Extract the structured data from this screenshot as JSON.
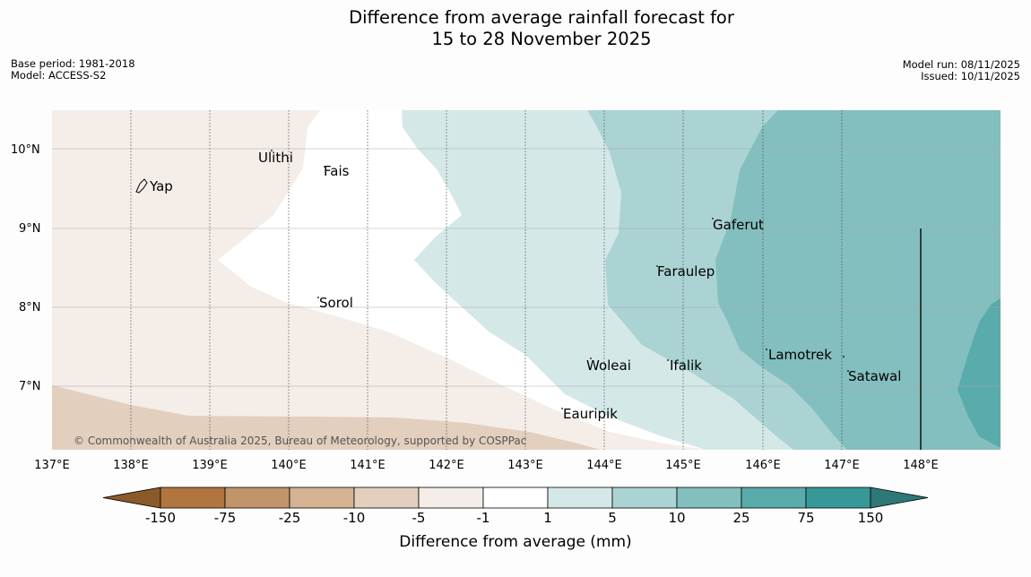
{
  "title": {
    "line1": "Difference from average rainfall forecast for",
    "line2": "15 to 28 November 2025"
  },
  "meta": {
    "base_period": "Base period: 1981-2018",
    "model": "Model: ACCESS-S2",
    "model_run": "Model run: 08/11/2025",
    "issued": "Issued: 10/11/2025"
  },
  "map": {
    "lon_labels": [
      "137°E",
      "138°E",
      "139°E",
      "140°E",
      "141°E",
      "142°E",
      "143°E",
      "144°E",
      "145°E",
      "146°E",
      "147°E",
      "148°E"
    ],
    "lat_labels": [
      "10°N",
      "9°N",
      "8°N",
      "7°N"
    ],
    "places": [
      "Ulithi",
      "Fais",
      "Yap",
      "Gaferut",
      "Faraulep",
      "Sorol",
      "Lamotrek",
      "Woleai",
      "Ifalik",
      "Satawal",
      "Eauripik"
    ],
    "copyright": "© Commonwealth of Australia 2025, Bureau of Meteorology, supported by COSPPac"
  },
  "colorbar": {
    "labels": [
      "-150",
      "-75",
      "-25",
      "-10",
      "-5",
      "-1",
      "1",
      "5",
      "10",
      "25",
      "75",
      "150"
    ],
    "colors": [
      "#8b5a2b",
      "#b0763e",
      "#c1946a",
      "#d4b292",
      "#e3cfbd",
      "#f4ede8",
      "#ffffff",
      "#d5e8e8",
      "#abd3d3",
      "#83bfbe",
      "#5aabab",
      "#369998",
      "#2e7878"
    ],
    "title": "Difference from average (mm)"
  }
}
